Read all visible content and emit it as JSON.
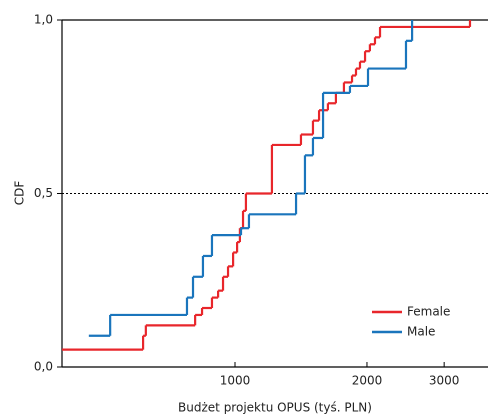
{
  "chart_data": {
    "type": "step",
    "x_label": "Budżet projektu OPUS (tyś. PLN)",
    "y_label": "CDF",
    "xlim": [
      403,
      3777
    ],
    "xscale": "log",
    "xticks": [
      1000,
      2000,
      3000
    ],
    "ylim": [
      0,
      1
    ],
    "yticks": [
      {
        "value": 0,
        "label": "0,0"
      },
      {
        "value": 0.5,
        "label": "0,5"
      },
      {
        "value": 1,
        "label": "1,0"
      }
    ],
    "hline": 0.5,
    "legend": "lower right",
    "series": [
      {
        "name": "Female",
        "color": "#e8262b",
        "x": [
          403,
          617,
          626,
          811,
          841,
          886,
          915,
          939,
          964,
          990,
          1011,
          1026,
          1043,
          1059,
          1214,
          1414,
          1506,
          1555,
          1629,
          1699,
          1772,
          1849,
          1888,
          1928,
          1980,
          2031,
          2086,
          2142,
          3436
        ],
        "values": [
          0.05,
          0.09,
          0.12,
          0.15,
          0.17,
          0.2,
          0.22,
          0.26,
          0.29,
          0.33,
          0.36,
          0.4,
          0.45,
          0.5,
          0.64,
          0.67,
          0.71,
          0.74,
          0.76,
          0.79,
          0.82,
          0.84,
          0.86,
          0.88,
          0.91,
          0.93,
          0.95,
          0.98,
          1
        ]
      },
      {
        "name": "Male",
        "color": "#1a75bc",
        "x": [
          464,
          519,
          777,
          802,
          845,
          886,
          1032,
          1076,
          1378,
          1444,
          1506,
          1588,
          1829,
          2011,
          2455,
          2535
        ],
        "values": [
          0.09,
          0.15,
          0.2,
          0.26,
          0.32,
          0.38,
          0.4,
          0.44,
          0.5,
          0.61,
          0.66,
          0.79,
          0.81,
          0.86,
          0.94,
          1
        ]
      }
    ]
  }
}
